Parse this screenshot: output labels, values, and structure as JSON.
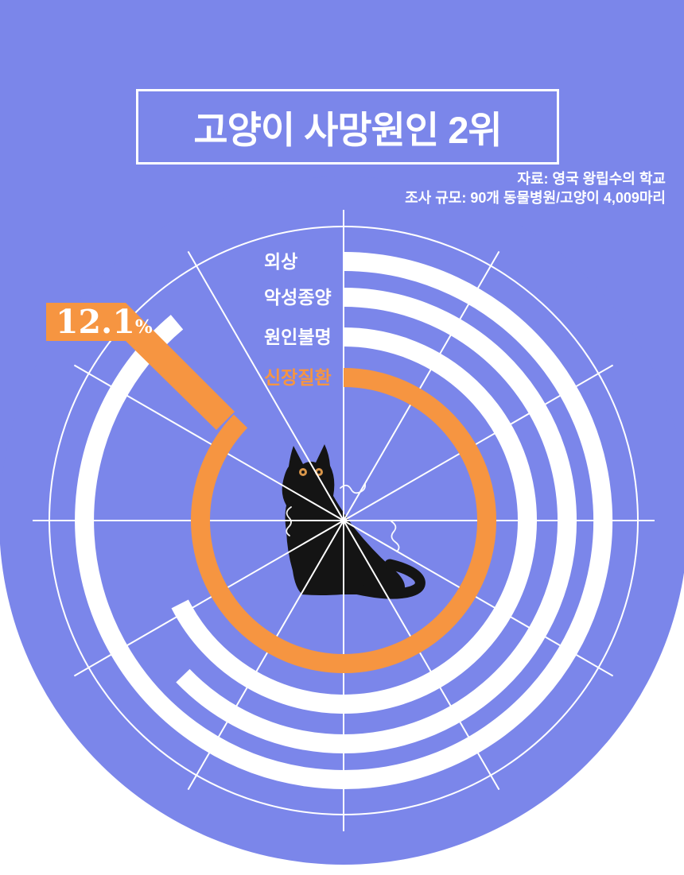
{
  "page": {
    "bg_top_color": "#7b86ea",
    "bg_bottom_color": "#ffffff",
    "accent_orange": "#f69541",
    "bar_white": "#ffffff",
    "cat_color": "#141414"
  },
  "header": {
    "title": "고양이 사망원인 2위"
  },
  "source": {
    "line1": "자료: 영국 왕립수의 학교",
    "line2": "조사 규모: 90개 동물병원/고양이 4,009마리"
  },
  "callout": {
    "value": "12.1",
    "unit": "%",
    "points_to": "신장질환"
  },
  "chart_data": {
    "type": "radial-bar",
    "title": "고양이 사망원인 2위",
    "direction": "clockwise",
    "start_angle_deg": 0,
    "max_angle_deg": 360,
    "grid": true,
    "grid_spokes": 12,
    "legend_position": "labels-left-of-bar-starts",
    "categories": [
      "외상",
      "악성종양",
      "원인불명",
      "신장질환"
    ],
    "series": [
      {
        "name": "사망원인",
        "sweep_deg": [
          320,
          226,
          243,
          314
        ],
        "labeled_values": [
          null,
          null,
          null,
          "12.1%"
        ]
      }
    ],
    "highlight_category": "신장질환",
    "highlight_value_pct": 12.1,
    "highlight_color": "#f69541",
    "bar_color": "#ffffff",
    "center_decoration": "black-cat-illustration"
  }
}
